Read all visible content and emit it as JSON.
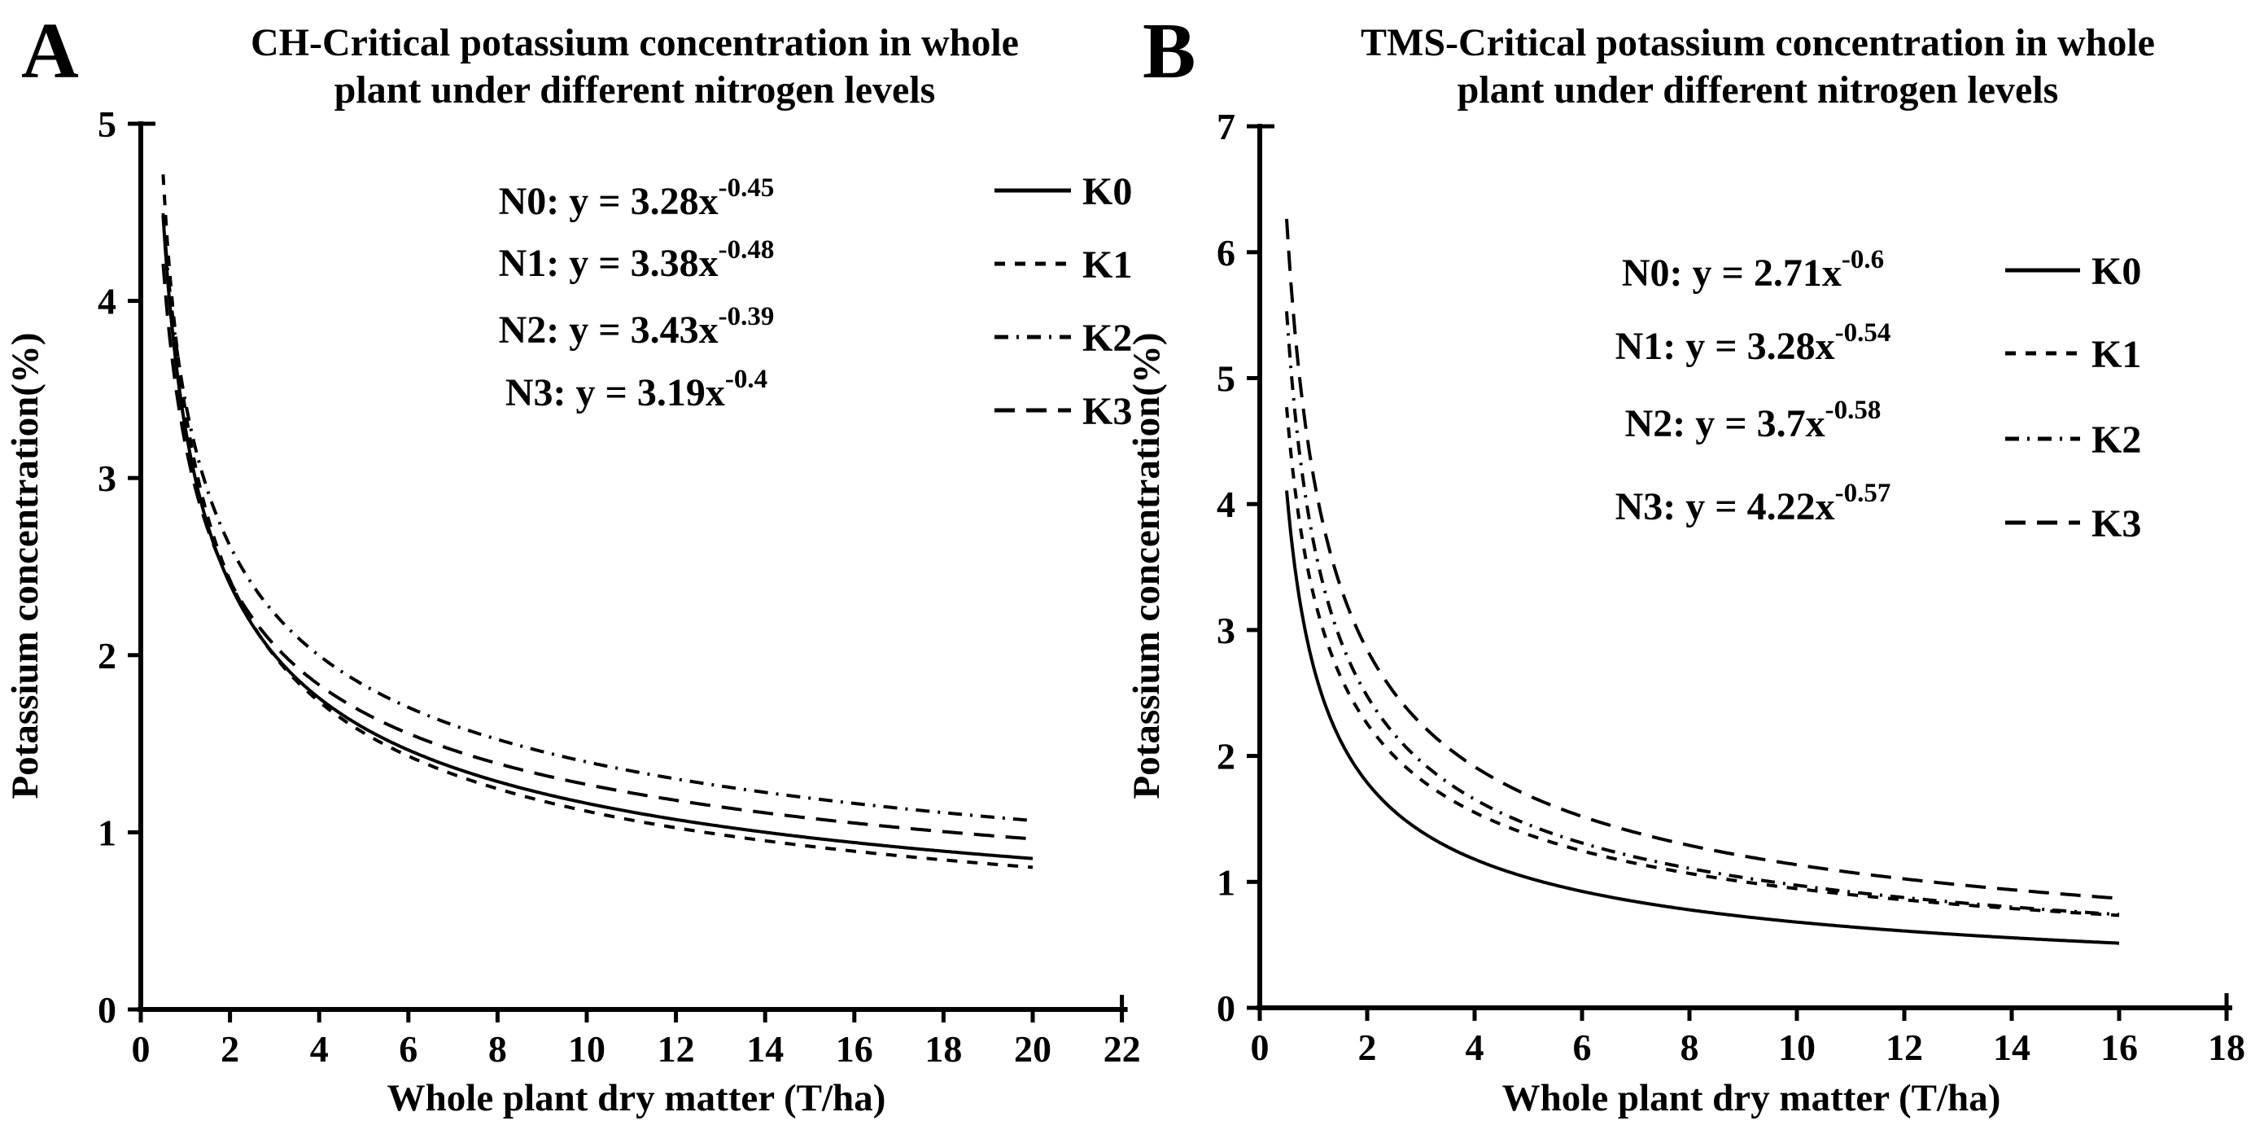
{
  "figure": {
    "background_color": "#ffffff",
    "ink_color": "#000000"
  },
  "chart_data": [
    {
      "type": "line",
      "panel_letter": "A",
      "title": "CH-Critical potassium concentration in whole plant under different nitrogen levels",
      "title_lines": [
        "CH-Critical potassium concentration in whole",
        "plant under different nitrogen levels"
      ],
      "xlabel": "Whole plant dry matter（T/ha）",
      "ylabel": "Potassium concentration(%)",
      "xlim": [
        0,
        22
      ],
      "ylim": [
        0,
        5
      ],
      "xticks": [
        0,
        2,
        4,
        6,
        8,
        10,
        12,
        14,
        16,
        18,
        20,
        22
      ],
      "yticks": [
        0,
        1,
        2,
        3,
        4,
        5
      ],
      "grid": false,
      "legend_position": "upper right",
      "legend_entries": [
        "K0",
        "K1",
        "K2",
        "K3"
      ],
      "curve_x_range": [
        0.5,
        20
      ],
      "series": [
        {
          "name": "K0",
          "line_style": "solid",
          "coefficient": 3.28,
          "exponent": -0.45,
          "equation": {
            "label_prefix": "N0: y = 3.28x",
            "exponent_display": "-0.45"
          },
          "y_at_x_start": 4.48,
          "y_at_x_end": 0.85
        },
        {
          "name": "K1",
          "line_style": "dashed",
          "coefficient": 3.38,
          "exponent": -0.48,
          "equation": {
            "label_prefix": "N1: y = 3.38x",
            "exponent_display": "-0.48"
          },
          "y_at_x_start": 4.71,
          "y_at_x_end": 0.8
        },
        {
          "name": "K2",
          "line_style": "dash-dot",
          "coefficient": 3.43,
          "exponent": -0.39,
          "equation": {
            "label_prefix": "N2: y = 3.43x",
            "exponent_display": "-0.39"
          },
          "y_at_x_start": 4.5,
          "y_at_x_end": 1.07
        },
        {
          "name": "K3",
          "line_style": "long-dash",
          "coefficient": 3.19,
          "exponent": -0.4,
          "equation": {
            "label_prefix": "N3: y = 3.19x",
            "exponent_display": "-0.4"
          },
          "y_at_x_start": 4.21,
          "y_at_x_end": 0.96
        }
      ]
    },
    {
      "type": "line",
      "panel_letter": "B",
      "title": "TMS-Critical potassium concentration in whole plant under different nitrogen levels",
      "title_lines": [
        "TMS-Critical potassium concentration in whole",
        "plant under different nitrogen levels"
      ],
      "xlabel": "Whole plant dry matter（T/ha）",
      "ylabel": "Potassium concentration(%)",
      "xlim": [
        0,
        18
      ],
      "ylim": [
        0,
        7
      ],
      "xticks": [
        0,
        2,
        4,
        6,
        8,
        10,
        12,
        14,
        16,
        18
      ],
      "yticks": [
        0,
        1,
        2,
        3,
        4,
        5,
        6,
        7
      ],
      "grid": false,
      "legend_position": "upper right",
      "legend_entries": [
        "K0",
        "K1",
        "K2",
        "K3"
      ],
      "curve_x_range": [
        0.5,
        16
      ],
      "series": [
        {
          "name": "K0",
          "line_style": "solid",
          "coefficient": 2.71,
          "exponent": -0.6,
          "equation": {
            "label_prefix": "N0: y = 2.71x",
            "exponent_display": "-0.6"
          },
          "y_at_x_start": 4.11,
          "y_at_x_end": 0.51
        },
        {
          "name": "K1",
          "line_style": "dashed",
          "coefficient": 3.28,
          "exponent": -0.54,
          "equation": {
            "label_prefix": "N1: y = 3.28x",
            "exponent_display": "-0.54"
          },
          "y_at_x_start": 4.77,
          "y_at_x_end": 0.73
        },
        {
          "name": "K2",
          "line_style": "dash-dot",
          "coefficient": 3.7,
          "exponent": -0.58,
          "equation": {
            "label_prefix": "N2: y = 3.7x",
            "exponent_display": "-0.58"
          },
          "y_at_x_start": 5.53,
          "y_at_x_end": 0.74
        },
        {
          "name": "K3",
          "line_style": "long-dash",
          "coefficient": 4.22,
          "exponent": -0.57,
          "equation": {
            "label_prefix": "N3: y = 4.22x",
            "exponent_display": "-0.57"
          },
          "y_at_x_start": 6.26,
          "y_at_x_end": 0.87
        }
      ]
    }
  ]
}
